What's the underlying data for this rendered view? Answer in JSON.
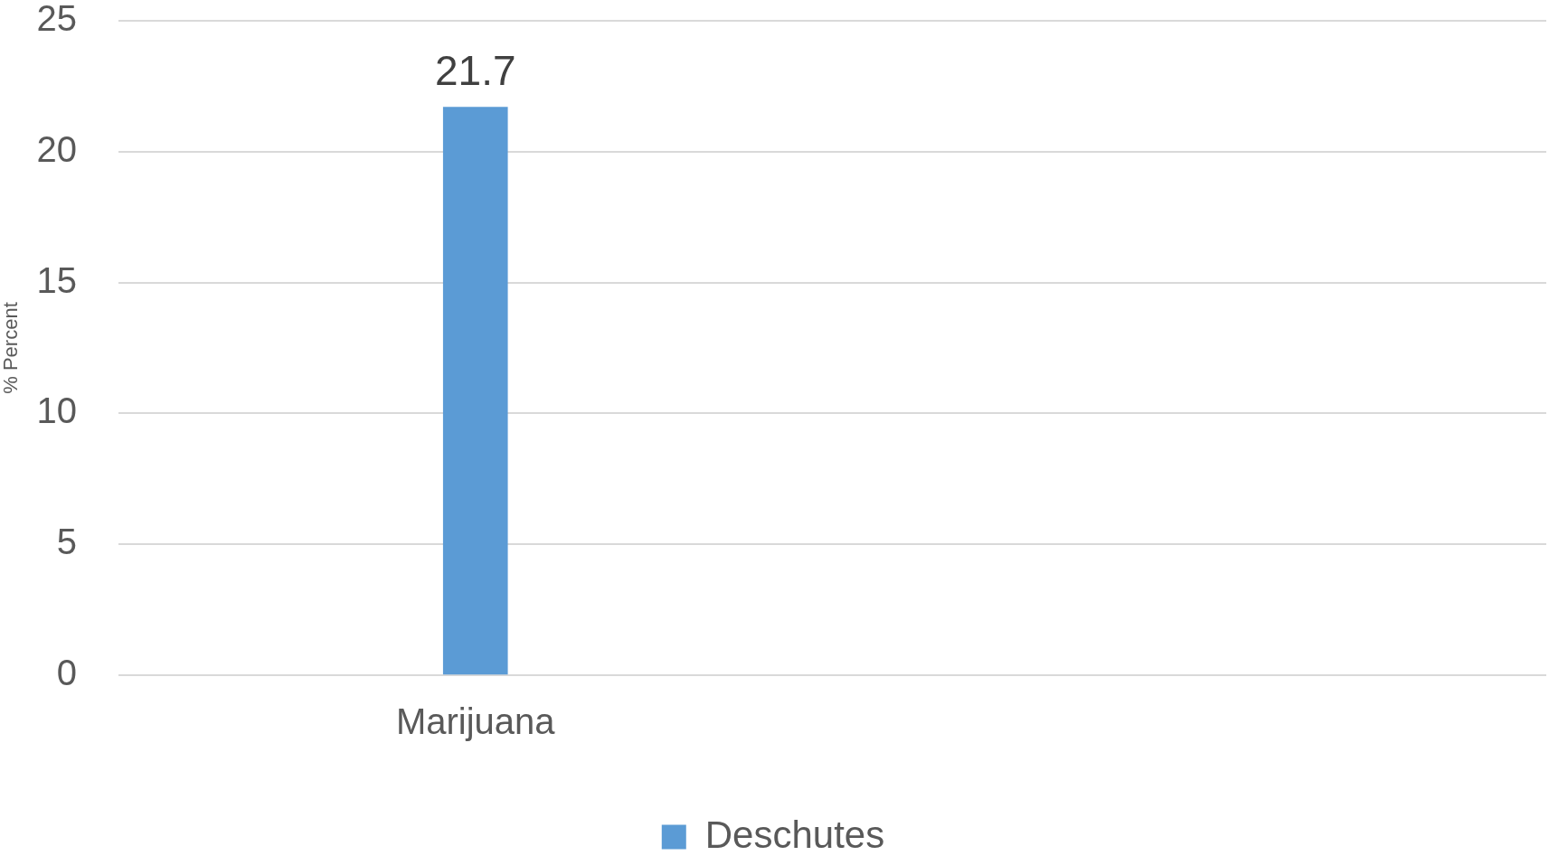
{
  "chart_data": {
    "type": "bar",
    "ylabel": "% Percent",
    "categories": [
      "Marijuana",
      null
    ],
    "series": [
      {
        "name": "Deschutes",
        "color": "#5b9bd5",
        "values": [
          21.7,
          null
        ]
      }
    ],
    "ylim": [
      0,
      25
    ],
    "yticks": [
      0,
      5,
      10,
      15,
      20,
      25
    ],
    "grid": "y",
    "legend": "bottom",
    "data_labels": true
  }
}
